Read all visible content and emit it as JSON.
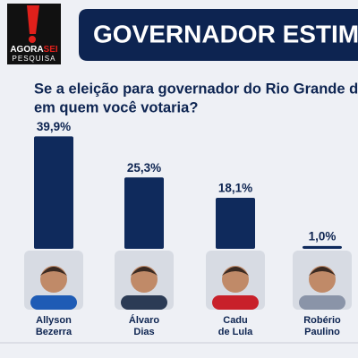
{
  "logo": {
    "brand_a": "AGORA",
    "brand_b": "SEI",
    "tagline": "PESQUISA"
  },
  "chart_data": {
    "type": "bar",
    "title": "GOVERNADOR ESTIM",
    "subtitle": [
      "Se a eleição para governador do Rio Grande do Nort",
      "em quem você votaria?"
    ],
    "categories": [
      [
        "Allyson",
        "Bezerra"
      ],
      [
        "Álvaro",
        "Dias"
      ],
      [
        "Cadu",
        "de Lula"
      ],
      [
        "Robério",
        "Paulino"
      ]
    ],
    "values": [
      39.9,
      25.3,
      18.1,
      1.0
    ],
    "value_labels": [
      "39,9%",
      "25,3%",
      "18,1%",
      "1,0%"
    ],
    "color": "#0f2a5c"
  }
}
